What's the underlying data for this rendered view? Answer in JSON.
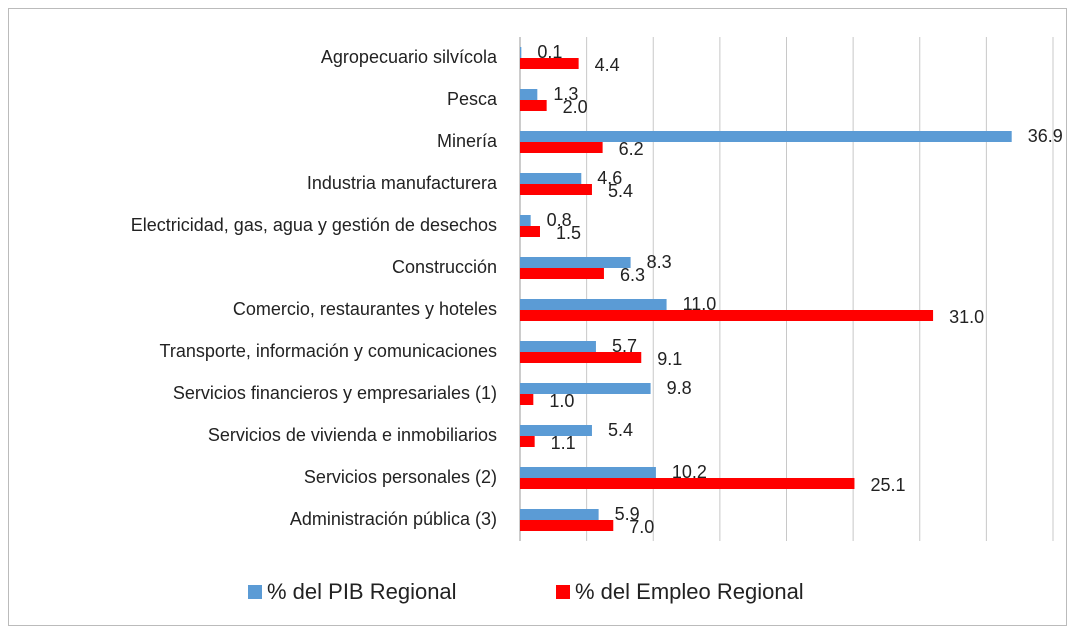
{
  "chart_data": {
    "type": "hbar",
    "categories": [
      "Agropecuario silvícola",
      "Pesca",
      "Minería",
      "Industria manufacturera",
      "Electricidad, gas, agua y gestión  de desechos",
      "Construcción",
      "Comercio, restaurantes y hoteles",
      "Transporte, información y comunicaciones",
      "Servicios financieros y empresariales (1)",
      "Servicios de vivienda e inmobiliarios",
      "Servicios personales (2)",
      "Administración pública (3)"
    ],
    "series": [
      {
        "name": "% del PIB Regional",
        "color": "#5b9bd5",
        "values": [
          0.1,
          1.3,
          36.9,
          4.6,
          0.8,
          8.3,
          11.0,
          5.7,
          9.8,
          5.4,
          10.2,
          5.9
        ],
        "value_labels": [
          "0.1",
          "1.3",
          "36.9",
          "4.6",
          "0.8",
          "8.3",
          "11.0",
          "5.7",
          "9.8",
          "5.4",
          "10.2",
          "5.9"
        ]
      },
      {
        "name": "% del Empleo Regional",
        "color": "#ff0000",
        "values": [
          4.4,
          2.0,
          6.2,
          5.4,
          1.5,
          6.3,
          31.0,
          9.1,
          1.0,
          1.1,
          25.1,
          7.0
        ],
        "value_labels": [
          "4.4",
          "2.0",
          "6.2",
          "5.4",
          "1.5",
          "6.3",
          "31.0",
          "9.1",
          "1.0",
          "1.1",
          "25.1",
          "7.0"
        ]
      }
    ],
    "xlim": [
      0,
      40
    ],
    "xticks": [
      0,
      5,
      10,
      15,
      20,
      25,
      30,
      35,
      40
    ],
    "tick_labels": false,
    "grid": true,
    "legend": "bottom"
  }
}
